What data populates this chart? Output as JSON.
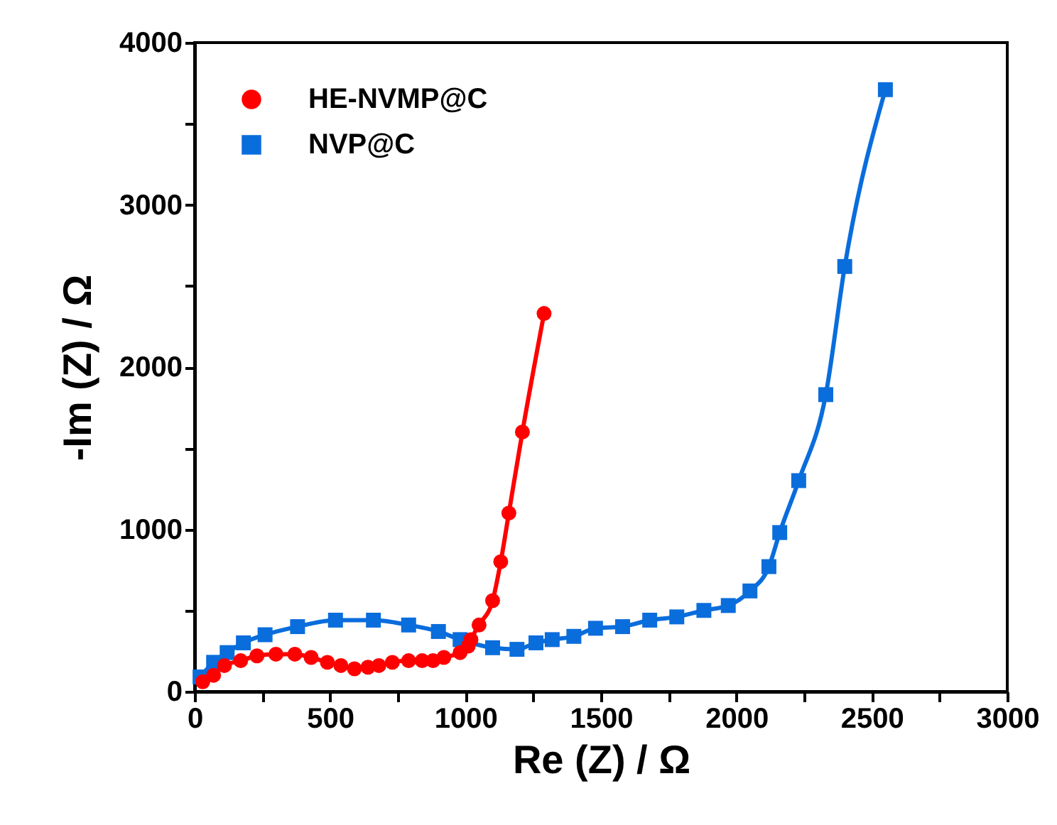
{
  "chart_data": {
    "type": "line",
    "xlabel": "Re (Z) / Ω",
    "ylabel": "-Im (Z) / Ω",
    "xlim": [
      0,
      3000
    ],
    "ylim": [
      0,
      4000
    ],
    "xticks": [
      0,
      {
        "value": 250,
        "label": null
      },
      500,
      {
        "value": 750,
        "label": null
      },
      1000,
      {
        "value": 1250,
        "label": null
      },
      1500,
      {
        "value": 1750,
        "label": null
      },
      2000,
      {
        "value": 2250,
        "label": null
      },
      2500,
      {
        "value": 2750,
        "label": null
      },
      3000
    ],
    "yticks": [
      0,
      {
        "value": 500,
        "label": null
      },
      1000,
      {
        "value": 1500,
        "label": null
      },
      2000,
      {
        "value": 2500,
        "label": null
      },
      3000,
      {
        "value": 3500,
        "label": null
      },
      4000
    ],
    "grid": false,
    "legend": "top left",
    "line_style": "solid",
    "series": [
      {
        "name": "HE-NVMP@C",
        "color": "#ff0000",
        "marker": "circle",
        "x": [
          30,
          70,
          110,
          170,
          230,
          300,
          370,
          430,
          490,
          540,
          590,
          640,
          680,
          730,
          790,
          840,
          880,
          920,
          980,
          1010,
          1020,
          1050,
          1100,
          1130,
          1160,
          1210,
          1290
        ],
        "values": [
          60,
          100,
          160,
          190,
          220,
          230,
          230,
          210,
          180,
          160,
          140,
          150,
          160,
          180,
          190,
          190,
          190,
          210,
          240,
          280,
          320,
          410,
          560,
          800,
          1100,
          1600,
          2330
        ]
      },
      {
        "name": "NVP@C",
        "color": "#0a6ddc",
        "marker": "square",
        "x": [
          20,
          70,
          120,
          180,
          260,
          380,
          520,
          660,
          790,
          900,
          980,
          1100,
          1190,
          1260,
          1320,
          1400,
          1480,
          1580,
          1680,
          1780,
          1880,
          1970,
          2050,
          2120,
          2160,
          2230,
          2330,
          2400,
          2550
        ],
        "values": [
          90,
          180,
          240,
          300,
          350,
          400,
          440,
          440,
          410,
          370,
          320,
          270,
          260,
          300,
          320,
          340,
          390,
          400,
          440,
          460,
          500,
          530,
          620,
          770,
          980,
          1300,
          1830,
          2620,
          3710
        ]
      }
    ]
  }
}
